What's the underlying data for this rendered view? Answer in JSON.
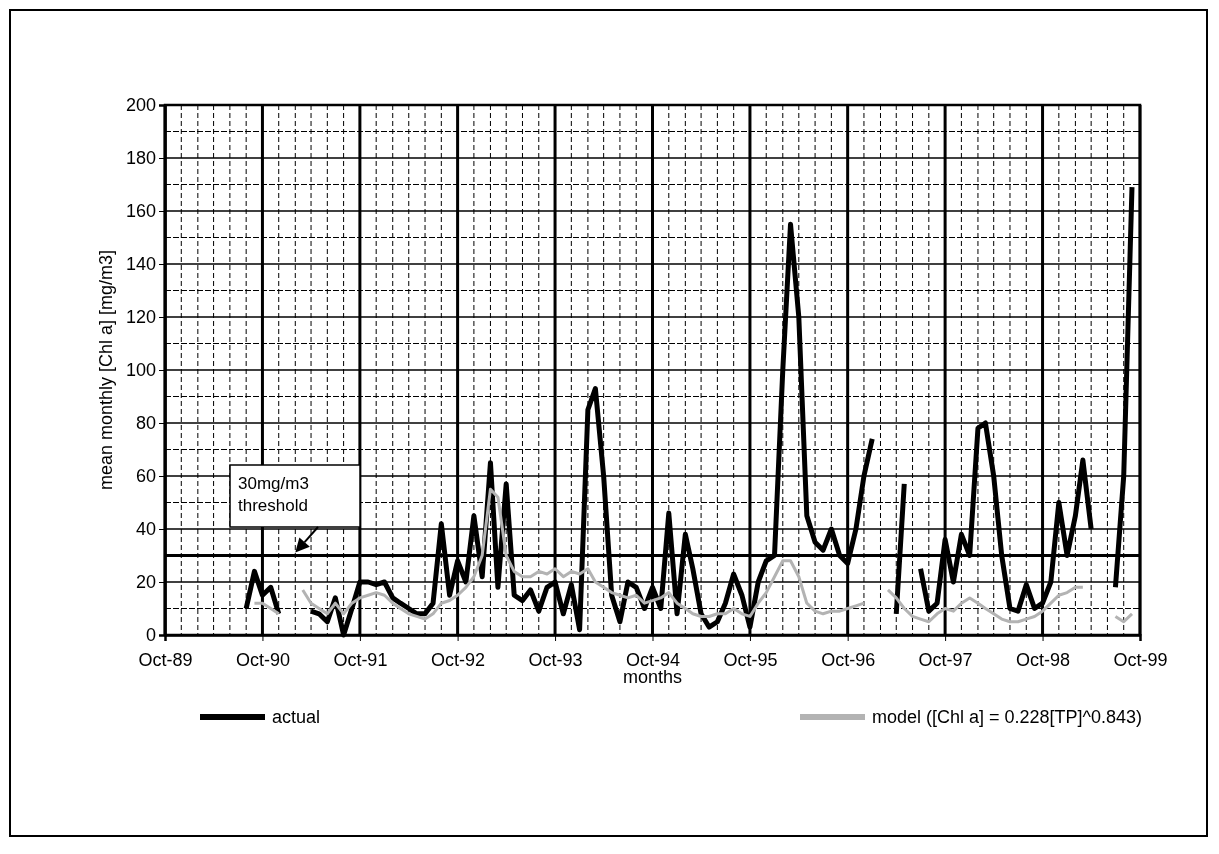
{
  "chart_data": {
    "type": "line",
    "xlabel": "months",
    "ylabel": "mean monthly [Chl a]  [mg/m3]",
    "x": [
      "1990-08",
      "1990-09",
      "1990-10",
      "1990-11",
      "1990-12",
      "1991-01",
      "1991-02",
      "1991-03",
      "1991-04",
      "1991-05",
      "1991-06",
      "1991-07",
      "1991-08",
      "1991-09",
      "1991-10",
      "1991-11",
      "1991-12",
      "1992-01",
      "1992-02",
      "1992-03",
      "1992-04",
      "1992-05",
      "1992-06",
      "1992-07",
      "1992-08",
      "1992-09",
      "1992-10",
      "1992-11",
      "1992-12",
      "1993-01",
      "1993-02",
      "1993-03",
      "1993-04",
      "1993-05",
      "1993-06",
      "1993-07",
      "1993-08",
      "1993-09",
      "1993-10",
      "1993-11",
      "1993-12",
      "1994-01",
      "1994-02",
      "1994-03",
      "1994-04",
      "1994-05",
      "1994-06",
      "1994-07",
      "1994-08",
      "1994-09",
      "1994-10",
      "1994-11",
      "1994-12",
      "1995-01",
      "1995-02",
      "1995-03",
      "1995-04",
      "1995-05",
      "1995-06",
      "1995-07",
      "1995-08",
      "1995-09",
      "1995-10",
      "1995-11",
      "1995-12",
      "1996-01",
      "1996-02",
      "1996-03",
      "1996-04",
      "1996-05",
      "1996-06",
      "1996-07",
      "1996-08",
      "1996-09",
      "1996-10",
      "1996-11",
      "1996-12",
      "1997-01",
      "1997-02",
      "1997-03",
      "1997-04",
      "1997-05",
      "1997-06",
      "1997-07",
      "1997-08",
      "1997-09",
      "1997-10",
      "1997-11",
      "1997-12",
      "1998-01",
      "1998-02",
      "1998-03",
      "1998-04",
      "1998-05",
      "1998-06",
      "1998-07",
      "1998-08",
      "1998-09",
      "1998-10",
      "1998-11",
      "1998-12",
      "1999-01",
      "1999-02",
      "1999-03",
      "1999-04",
      "1999-05",
      "1999-06",
      "1999-07",
      "1999-08",
      "1999-09"
    ],
    "series": [
      {
        "name": "actual",
        "color": "#000000",
        "values": [
          10,
          24,
          15,
          18,
          8,
          null,
          null,
          null,
          9,
          8,
          5,
          14,
          0,
          10,
          20,
          20,
          19,
          20,
          14,
          12,
          10,
          8,
          8,
          12,
          42,
          15,
          28,
          20,
          45,
          22,
          65,
          18,
          57,
          15,
          13,
          17,
          9,
          18,
          20,
          8,
          19,
          2,
          85,
          93,
          60,
          15,
          5,
          20,
          18,
          10,
          18,
          10,
          46,
          8,
          38,
          25,
          8,
          3,
          5,
          12,
          23,
          15,
          3,
          20,
          28,
          30,
          100,
          155,
          120,
          45,
          35,
          32,
          40,
          30,
          27,
          40,
          60,
          74,
          null,
          null,
          8,
          57,
          null,
          25,
          9,
          12,
          36,
          20,
          38,
          30,
          78,
          80,
          60,
          30,
          10,
          9,
          19,
          10,
          12,
          20,
          50,
          30,
          45,
          66,
          40,
          null,
          null,
          18,
          60,
          169
        ]
      },
      {
        "name": "model ([Chl a] = 0.228[TP]^0.843)",
        "color": "#b3b3b3",
        "values": [
          null,
          12,
          12,
          10,
          8,
          null,
          null,
          17,
          12,
          10,
          8,
          12,
          8,
          12,
          14,
          15,
          16,
          15,
          12,
          10,
          8,
          7,
          6,
          8,
          12,
          13,
          15,
          18,
          22,
          30,
          55,
          52,
          30,
          24,
          22,
          22,
          24,
          23,
          25,
          22,
          24,
          23,
          25,
          20,
          18,
          16,
          15,
          14,
          15,
          12,
          13,
          14,
          16,
          12,
          10,
          8,
          7,
          7,
          8,
          8,
          10,
          8,
          7,
          12,
          16,
          22,
          28,
          28,
          22,
          12,
          9,
          8,
          9,
          9,
          10,
          11,
          12,
          null,
          null,
          17,
          14,
          10,
          7,
          6,
          5,
          8,
          10,
          9,
          12,
          14,
          12,
          10,
          8,
          6,
          5,
          5,
          6,
          7,
          9,
          12,
          15,
          16,
          18,
          18,
          null,
          null,
          null,
          7,
          5,
          8
        ]
      }
    ],
    "xlim": [
      "1989-10",
      "1999-10"
    ],
    "xticks": [
      {
        "value": "1989-10",
        "label": "Oct-89"
      },
      {
        "value": "1990-10",
        "label": "Oct-90"
      },
      {
        "value": "1991-10",
        "label": "Oct-91"
      },
      {
        "value": "1992-10",
        "label": "Oct-92"
      },
      {
        "value": "1993-10",
        "label": "Oct-93"
      },
      {
        "value": "1994-10",
        "label": "Oct-94"
      },
      {
        "value": "1995-10",
        "label": "Oct-95"
      },
      {
        "value": "1996-10",
        "label": "Oct-96"
      },
      {
        "value": "1997-10",
        "label": "Oct-97"
      },
      {
        "value": "1998-10",
        "label": "Oct-98"
      },
      {
        "value": "1999-10",
        "label": "Oct-99"
      }
    ],
    "ylim": [
      0,
      200
    ],
    "yticks": [
      0,
      20,
      40,
      60,
      80,
      100,
      120,
      140,
      160,
      180,
      200
    ],
    "grid": true,
    "legend": "bottom",
    "line_style": "solid",
    "ref_lines": [
      {
        "axis": "y",
        "value": 30,
        "color": "#000000"
      }
    ],
    "annotations": [
      {
        "text": "30mg/m3 threshold",
        "x": "1991-02",
        "y": 30
      }
    ]
  }
}
